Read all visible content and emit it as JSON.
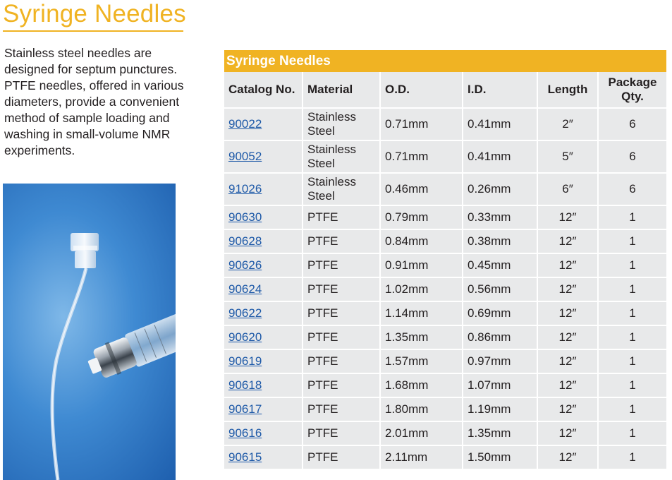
{
  "page": {
    "title": "Syringe Needles",
    "intro": "Stainless steel needles are designed for septum punctures. PTFE needles, offered in various diameters, provide a convenient method of sample loading and washing in small-volume NMR experiments."
  },
  "table": {
    "title": "Syringe Needles",
    "headers": {
      "catalog": "Catalog No.",
      "material": "Material",
      "od": "O.D.",
      "id": "I.D.",
      "length": "Length",
      "qty": "Package Qty."
    },
    "rows": [
      {
        "catalog": "90022",
        "material": "Stainless Steel",
        "od": "0.71mm",
        "id": "0.41mm",
        "length": "2″",
        "qty": "6"
      },
      {
        "catalog": "90052",
        "material": "Stainless Steel",
        "od": "0.71mm",
        "id": "0.41mm",
        "length": "5″",
        "qty": "6"
      },
      {
        "catalog": "91026",
        "material": "Stainless Steel",
        "od": "0.46mm",
        "id": "0.26mm",
        "length": "6″",
        "qty": "6"
      },
      {
        "catalog": "90630",
        "material": "PTFE",
        "od": "0.79mm",
        "id": "0.33mm",
        "length": "12″",
        "qty": "1"
      },
      {
        "catalog": "90628",
        "material": "PTFE",
        "od": "0.84mm",
        "id": "0.38mm",
        "length": "12″",
        "qty": "1"
      },
      {
        "catalog": "90626",
        "material": "PTFE",
        "od": "0.91mm",
        "id": "0.45mm",
        "length": "12″",
        "qty": "1"
      },
      {
        "catalog": "90624",
        "material": "PTFE",
        "od": "1.02mm",
        "id": "0.56mm",
        "length": "12″",
        "qty": "1"
      },
      {
        "catalog": "90622",
        "material": "PTFE",
        "od": "1.14mm",
        "id": "0.69mm",
        "length": "12″",
        "qty": "1"
      },
      {
        "catalog": "90620",
        "material": "PTFE",
        "od": "1.35mm",
        "id": "0.86mm",
        "length": "12″",
        "qty": "1"
      },
      {
        "catalog": "90619",
        "material": "PTFE",
        "od": "1.57mm",
        "id": "0.97mm",
        "length": "12″",
        "qty": "1"
      },
      {
        "catalog": "90618",
        "material": "PTFE",
        "od": "1.68mm",
        "id": "1.07mm",
        "length": "12″",
        "qty": "1"
      },
      {
        "catalog": "90617",
        "material": "PTFE",
        "od": "1.80mm",
        "id": "1.19mm",
        "length": "12″",
        "qty": "1"
      },
      {
        "catalog": "90616",
        "material": "PTFE",
        "od": "2.01mm",
        "id": "1.35mm",
        "length": "12″",
        "qty": "1"
      },
      {
        "catalog": "90615",
        "material": "PTFE",
        "od": "2.11mm",
        "id": "1.50mm",
        "length": "12″",
        "qty": "1"
      }
    ]
  },
  "colors": {
    "accent": "#f0b323",
    "cell_bg": "#e8e9ea",
    "link": "#1f5aa8"
  }
}
